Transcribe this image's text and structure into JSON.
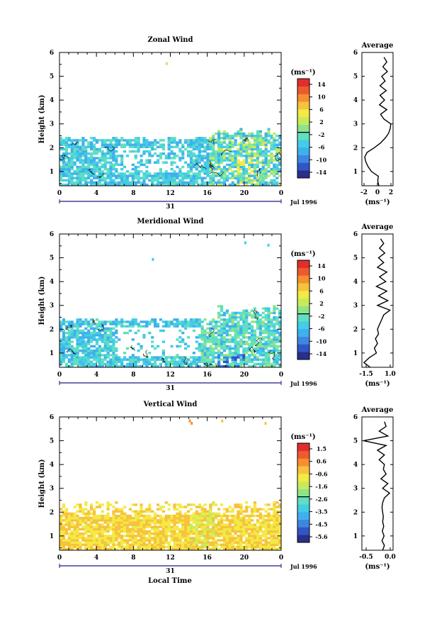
{
  "figure": {
    "panels": [
      {
        "id": "zonal",
        "title": "Zonal Wind",
        "avg_title": "Average",
        "units": "(ms⁻¹)",
        "avg_xlabel": "(ms⁻¹)",
        "colorbar_ticks": [
          "14",
          "10",
          "6",
          "2",
          "-2",
          "-6",
          "-10",
          "-14"
        ],
        "avg_xticks": [
          "-2",
          "0",
          "2"
        ]
      },
      {
        "id": "meridional",
        "title": "Meridional Wind",
        "avg_title": "Average",
        "units": "(ms⁻¹)",
        "avg_xlabel": "(ms⁻¹)",
        "colorbar_ticks": [
          "14",
          "10",
          "6",
          "2",
          "-2",
          "-6",
          "-10",
          "-14"
        ],
        "avg_xticks": [
          "-1.5",
          "1.0"
        ]
      },
      {
        "id": "vertical",
        "title": "Vertical Wind",
        "avg_title": "Average",
        "units": "(ms⁻¹)",
        "avg_xlabel": "(ms⁻¹)",
        "colorbar_ticks": [
          "1.5",
          "0.6",
          "-0.6",
          "-1.6",
          "-2.6",
          "-3.5",
          "-4.5",
          "-5.6"
        ],
        "avg_xticks": [
          "-0.5",
          "0.0"
        ]
      }
    ],
    "ylabel": "Height (km)",
    "yticks": [
      "1",
      "2",
      "3",
      "4",
      "5",
      "6"
    ],
    "xticks": [
      "0",
      "4",
      "8",
      "12",
      "16",
      "20",
      "0"
    ],
    "day_label": "31",
    "date_label": "Jul 1996",
    "xlabel": "Local Time",
    "colormap": [
      "#2a2f8c",
      "#2f56c6",
      "#3f86e3",
      "#3fb0ee",
      "#43cde6",
      "#5fe0c0",
      "#8fe48a",
      "#c8ea5a",
      "#f2ea45",
      "#f7c23d",
      "#f6902f",
      "#ee5a2d",
      "#e02e2e"
    ]
  },
  "chart_data": [
    {
      "type": "heatmap",
      "title": "Zonal Wind",
      "xlabel": "",
      "ylabel": "Height (km)",
      "xlim": [
        0,
        24
      ],
      "ylim": [
        0.4,
        6
      ],
      "units": "(ms⁻¹)",
      "colorbar_range": [
        -14,
        14
      ],
      "profile": {
        "title": "Average",
        "xlabel": "(ms⁻¹)",
        "xlim": [
          -2.5,
          3.0
        ],
        "height": [
          0.4,
          0.6,
          0.8,
          1.0,
          1.2,
          1.4,
          1.6,
          1.8,
          2.0,
          2.2,
          2.4,
          2.6,
          2.8,
          3.0,
          3.2,
          3.4,
          3.6,
          3.8,
          4.0,
          4.2,
          4.4,
          4.6,
          4.8,
          5.0,
          5.2,
          5.4,
          5.6,
          5.8
        ],
        "value": [
          0.5,
          0.3,
          0.4,
          -0.8,
          -1.4,
          -1.8,
          -2.0,
          -1.6,
          -0.3,
          0.8,
          1.6,
          2.2,
          2.5,
          2.6,
          1.4,
          0.8,
          1.9,
          0.6,
          1.5,
          0.7,
          1.8,
          0.7,
          1.6,
          1.0,
          2.0,
          1.2,
          1.9,
          1.4
        ]
      }
    },
    {
      "type": "heatmap",
      "title": "Meridional Wind",
      "xlabel": "",
      "ylabel": "Height (km)",
      "xlim": [
        0,
        24
      ],
      "ylim": [
        0.4,
        6
      ],
      "units": "(ms⁻¹)",
      "colorbar_range": [
        -14,
        14
      ],
      "profile": {
        "title": "Average",
        "xlabel": "(ms⁻¹)",
        "xlim": [
          -1.8,
          1.2
        ],
        "height": [
          0.4,
          0.6,
          0.8,
          1.0,
          1.2,
          1.4,
          1.6,
          1.8,
          2.0,
          2.2,
          2.4,
          2.6,
          2.8,
          3.0,
          3.2,
          3.4,
          3.6,
          3.8,
          4.0,
          4.2,
          4.4,
          4.6,
          4.8,
          5.0,
          5.2,
          5.4,
          5.6,
          5.8
        ],
        "value": [
          -1.0,
          -1.6,
          -1.1,
          -0.4,
          -0.6,
          -0.3,
          -0.5,
          -0.2,
          -0.3,
          -0.1,
          0.1,
          0.3,
          0.9,
          -0.3,
          0.7,
          -0.2,
          0.6,
          -0.4,
          0.5,
          -0.1,
          0.6,
          -0.3,
          0.3,
          -0.2,
          0.4,
          -0.1,
          0.3,
          0.0
        ]
      }
    },
    {
      "type": "heatmap",
      "title": "Vertical Wind",
      "xlabel": "Local Time",
      "ylabel": "Height (km)",
      "xlim": [
        0,
        24
      ],
      "ylim": [
        0.4,
        6
      ],
      "units": "(ms⁻¹)",
      "colorbar_range": [
        -5.6,
        1.5
      ],
      "profile": {
        "title": "Average",
        "xlabel": "(ms⁻¹)",
        "xlim": [
          -0.6,
          0.3
        ],
        "height": [
          0.4,
          0.6,
          0.8,
          1.0,
          1.2,
          1.4,
          1.6,
          1.8,
          2.0,
          2.2,
          2.4,
          2.6,
          2.8,
          3.0,
          3.2,
          3.4,
          3.6,
          3.8,
          4.0,
          4.2,
          4.4,
          4.6,
          4.8,
          5.0,
          5.2,
          5.4,
          5.6,
          5.8
        ],
        "value": [
          0.0,
          0.05,
          -0.02,
          0.04,
          -0.01,
          0.03,
          0.0,
          0.02,
          0.0,
          -0.02,
          0.0,
          0.05,
          0.2,
          0.0,
          0.15,
          -0.05,
          0.1,
          0.02,
          0.05,
          -0.1,
          0.05,
          -0.15,
          0.1,
          -0.55,
          0.15,
          -0.1,
          0.1,
          0.05
        ]
      }
    }
  ]
}
